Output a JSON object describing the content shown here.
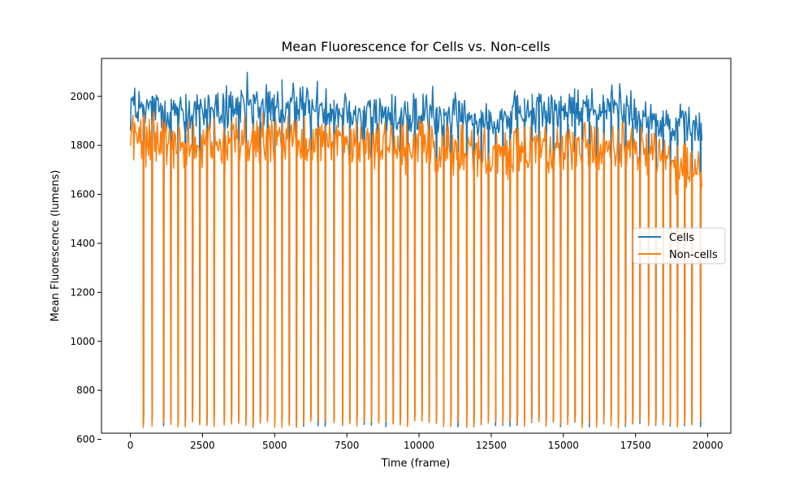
{
  "chart_data": {
    "type": "line",
    "title": "Mean Fluorescence for Cells vs. Non-cells",
    "xlabel": "Time (frame)",
    "ylabel": "Mean Fluorescence (lumens)",
    "xlim": [
      -1000,
      20800
    ],
    "ylim": [
      625,
      2155
    ],
    "xticks": [
      0,
      2500,
      5000,
      7500,
      10000,
      12500,
      15000,
      17500,
      20000
    ],
    "yticks": [
      600,
      800,
      1000,
      1200,
      1400,
      1600,
      1800,
      2000
    ],
    "grid": false,
    "legend_position": "center-right",
    "n_frames": 19800,
    "dip_frames": [
      450,
      750,
      1150,
      1400,
      1650,
      1900,
      2150,
      2400,
      2650,
      2900,
      3250,
      3500,
      3750,
      4000,
      4250,
      4500,
      4750,
      5000,
      5250,
      5500,
      5750,
      6000,
      6250,
      6500,
      6750,
      7050,
      7350,
      7600,
      7850,
      8100,
      8350,
      8600,
      8850,
      9100,
      9350,
      9600,
      9850,
      10100,
      10350,
      10600,
      10850,
      11100,
      11350,
      11650,
      11900,
      12150,
      12400,
      12650,
      12900,
      13150,
      13400,
      13650,
      13900,
      14150,
      14400,
      14650,
      14900,
      15150,
      15400,
      15650,
      15900,
      16150,
      16400,
      16650,
      16900,
      17150,
      17400,
      17650,
      17950,
      18200,
      18450,
      18700,
      18950,
      19200,
      19450,
      19750
    ],
    "dip_floor": 650,
    "series": [
      {
        "name": "Cells",
        "color": "#1f77b4",
        "baseline": {
          "x": [
            0,
            2000,
            4000,
            6000,
            7000,
            8000,
            10000,
            12000,
            13200,
            13300,
            15000,
            17000,
            18500,
            19800
          ],
          "y": [
            1955,
            1935,
            1955,
            1960,
            1945,
            1930,
            1925,
            1920,
            1905,
            1950,
            1945,
            1960,
            1900,
            1870
          ]
        },
        "band_min": 1820,
        "band_max": 2110
      },
      {
        "name": "Non-cells",
        "color": "#ff7f0e",
        "baseline": {
          "x": [
            0,
            2000,
            4000,
            6000,
            7000,
            8000,
            10000,
            12000,
            13200,
            13300,
            15000,
            17000,
            18500,
            19800
          ],
          "y": [
            1830,
            1800,
            1820,
            1830,
            1815,
            1790,
            1800,
            1760,
            1745,
            1800,
            1790,
            1790,
            1750,
            1700
          ]
        },
        "band_min": 1600,
        "band_max": 1990
      }
    ]
  }
}
